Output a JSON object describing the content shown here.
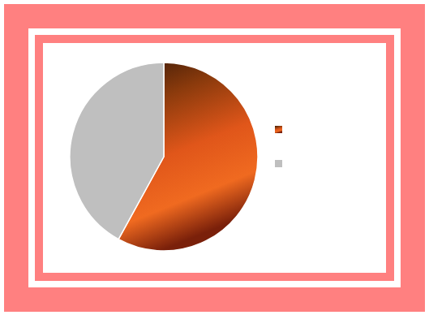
{
  "chart_data": {
    "type": "pie",
    "categories": [
      null,
      null
    ],
    "values": [
      58,
      42
    ],
    "colors": [
      "#e0561a",
      "#bfbfbf"
    ],
    "legend": "right"
  }
}
